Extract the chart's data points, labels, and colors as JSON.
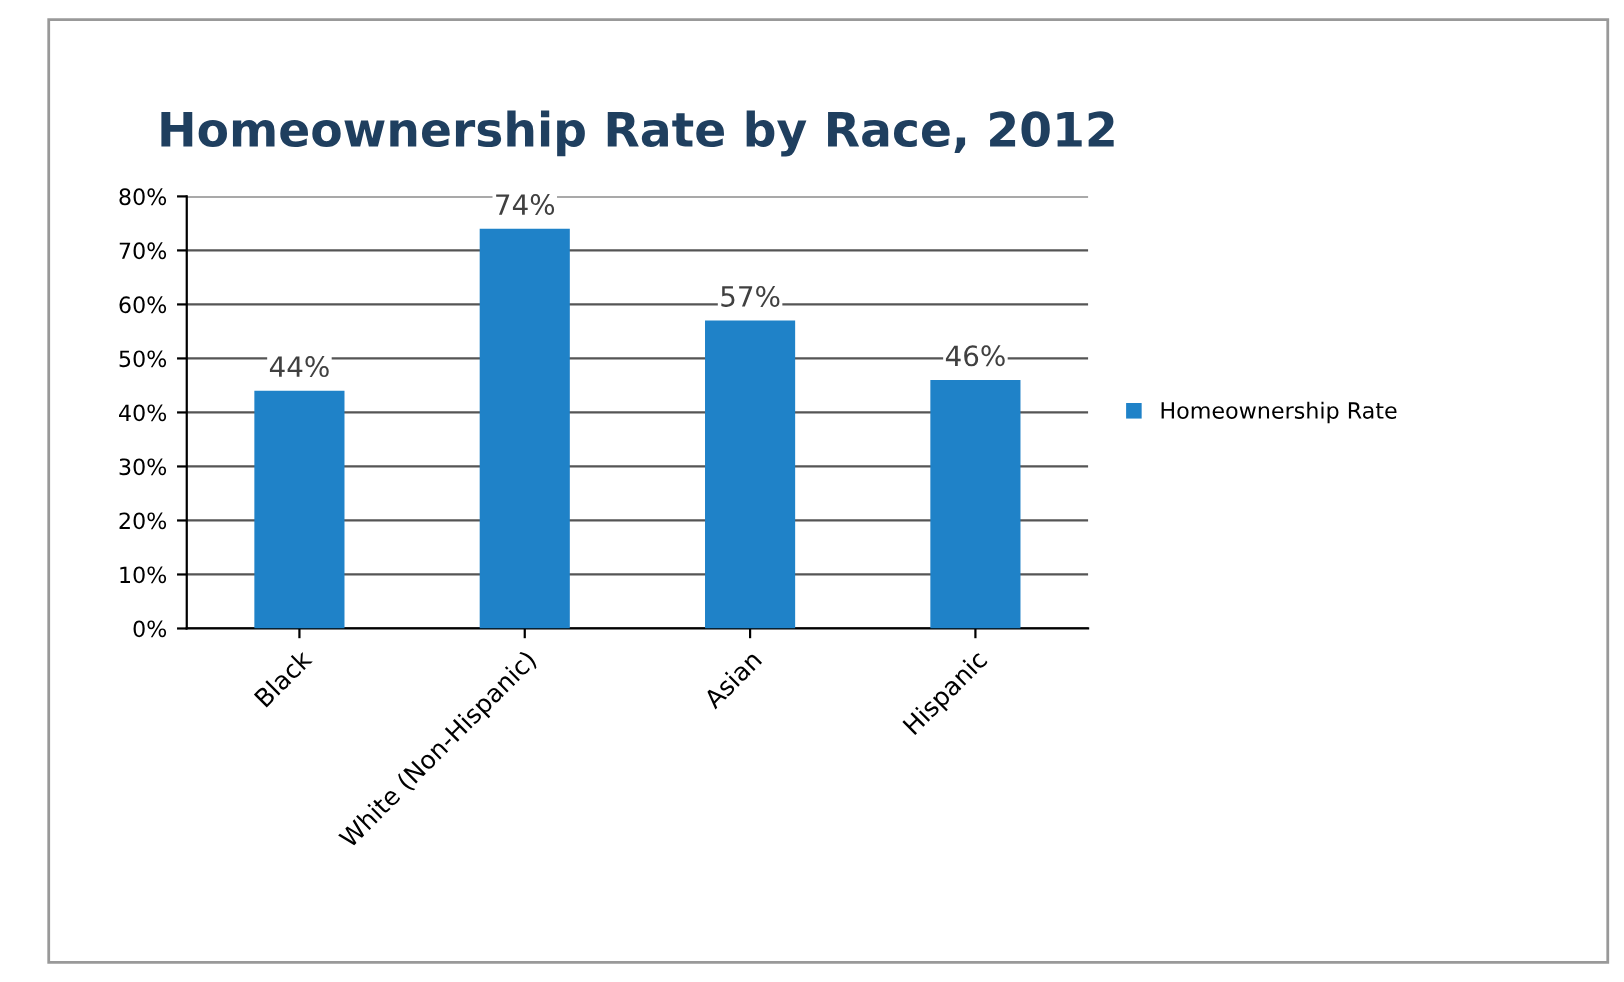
{
  "chart_data": {
    "type": "bar",
    "title": "Homeownership Rate by Race, 2012",
    "categories": [
      "Black",
      "White (Non-Hispanic)",
      "Asian",
      "Hispanic"
    ],
    "series": [
      {
        "name": "Homeownership Rate",
        "color": "#1f82c8",
        "values": [
          44,
          74,
          57,
          46
        ],
        "value_labels": [
          "44%",
          "74%",
          "57%",
          "46%"
        ]
      }
    ],
    "ylim": [
      0,
      80
    ],
    "yticks": [
      {
        "value": 0,
        "label": "0%"
      },
      {
        "value": 10,
        "label": "10%"
      },
      {
        "value": 20,
        "label": "20%"
      },
      {
        "value": 30,
        "label": "30%"
      },
      {
        "value": 40,
        "label": "40%"
      },
      {
        "value": 50,
        "label": "50%"
      },
      {
        "value": 60,
        "label": "60%"
      },
      {
        "value": 70,
        "label": "70%"
      },
      {
        "value": 80,
        "label": "80%"
      }
    ],
    "grid": "y",
    "legend": "right"
  }
}
